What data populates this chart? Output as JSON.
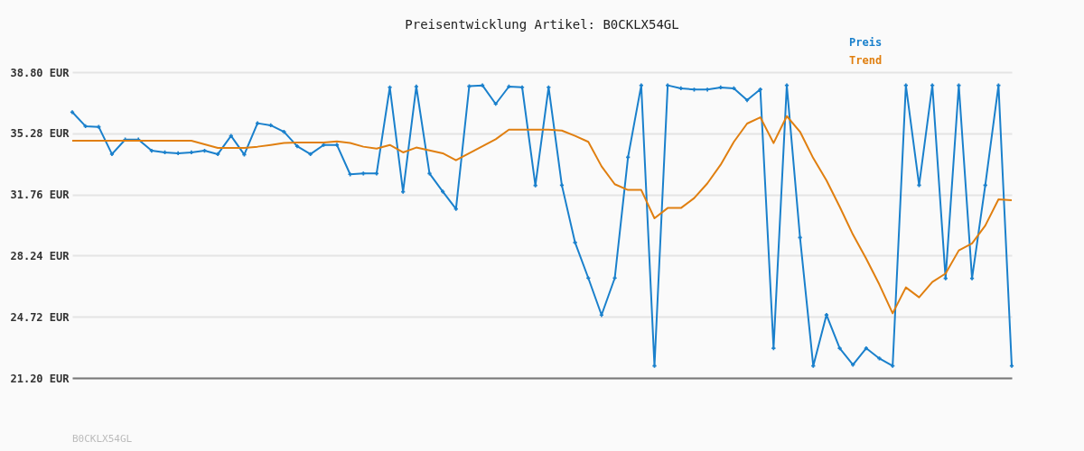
{
  "chart_data": {
    "type": "line",
    "title": "Preisentwicklung Artikel: B0CKLX54GL",
    "categories": [
      null,
      null,
      null,
      null,
      null,
      null,
      null,
      null,
      null,
      null,
      null,
      null,
      null,
      null,
      null,
      null,
      null,
      null,
      null,
      null,
      null,
      null,
      null,
      null,
      null,
      null,
      null,
      null,
      null,
      null,
      null,
      null,
      null,
      null,
      null,
      null,
      null,
      null,
      null,
      null,
      null,
      null,
      null,
      null,
      null,
      null,
      null,
      null,
      null,
      null,
      null,
      null,
      null,
      null,
      null,
      null,
      null,
      null,
      null,
      null,
      null,
      null,
      null,
      null,
      null,
      null,
      null,
      null,
      null,
      null,
      null,
      null
    ],
    "series": [
      {
        "name": "Preis",
        "color": "#1a80cc",
        "marker": "cross",
        "values": [
          36.5,
          35.69,
          35.65,
          34.08,
          34.92,
          34.92,
          34.28,
          34.18,
          34.13,
          34.18,
          34.28,
          34.08,
          35.13,
          34.06,
          35.86,
          35.74,
          35.37,
          34.54,
          34.08,
          34.61,
          34.61,
          32.92,
          32.97,
          32.97,
          37.93,
          31.91,
          37.97,
          32.97,
          31.93,
          30.93,
          37.99,
          38.04,
          36.97,
          37.97,
          37.93,
          32.28,
          37.93,
          32.29,
          28.99,
          26.95,
          24.82,
          26.95,
          33.9,
          38.04,
          21.89,
          38.04,
          37.87,
          37.8,
          37.8,
          37.92,
          37.87,
          37.19,
          37.81,
          22.91,
          38.04,
          29.28,
          21.89,
          24.83,
          22.91,
          21.96,
          22.91,
          22.32,
          21.89,
          38.04,
          32.29,
          38.04,
          26.93,
          38.04,
          26.93,
          32.29,
          38.04,
          21.89
        ]
      },
      {
        "name": "Trend",
        "color": "#e07f10",
        "marker": "none",
        "values": [
          34.85,
          34.85,
          34.85,
          34.85,
          34.85,
          34.85,
          34.85,
          34.85,
          34.85,
          34.85,
          34.65,
          34.44,
          34.44,
          34.44,
          34.51,
          34.61,
          34.72,
          34.75,
          34.75,
          34.75,
          34.82,
          34.72,
          34.51,
          34.4,
          34.61,
          34.18,
          34.46,
          34.3,
          34.13,
          33.73,
          34.13,
          34.54,
          34.94,
          35.49,
          35.49,
          35.49,
          35.49,
          35.44,
          35.13,
          34.79,
          33.38,
          32.35,
          32.02,
          32.02,
          30.39,
          30.98,
          30.98,
          31.55,
          32.4,
          33.47,
          34.79,
          35.84,
          36.2,
          34.72,
          36.27,
          35.37,
          33.85,
          32.57,
          31.05,
          29.45,
          28.07,
          26.57,
          24.92,
          26.41,
          25.84,
          26.72,
          27.21,
          28.54,
          28.94,
          29.97,
          31.48,
          31.43
        ]
      }
    ],
    "ylim": [
      21.2,
      38.8
    ],
    "yticks": [
      {
        "value": 21.2,
        "label": "21.20 EUR"
      },
      {
        "value": 24.72,
        "label": "24.72 EUR"
      },
      {
        "value": 28.24,
        "label": "28.24 EUR"
      },
      {
        "value": 31.76,
        "label": "31.76 EUR"
      },
      {
        "value": 35.28,
        "label": "35.28 EUR"
      },
      {
        "value": 38.8,
        "label": "38.80 EUR"
      }
    ],
    "tick_labels": "y",
    "grid": "y",
    "legend": "top right",
    "annotations": [
      "B0CKLX54GL"
    ]
  }
}
